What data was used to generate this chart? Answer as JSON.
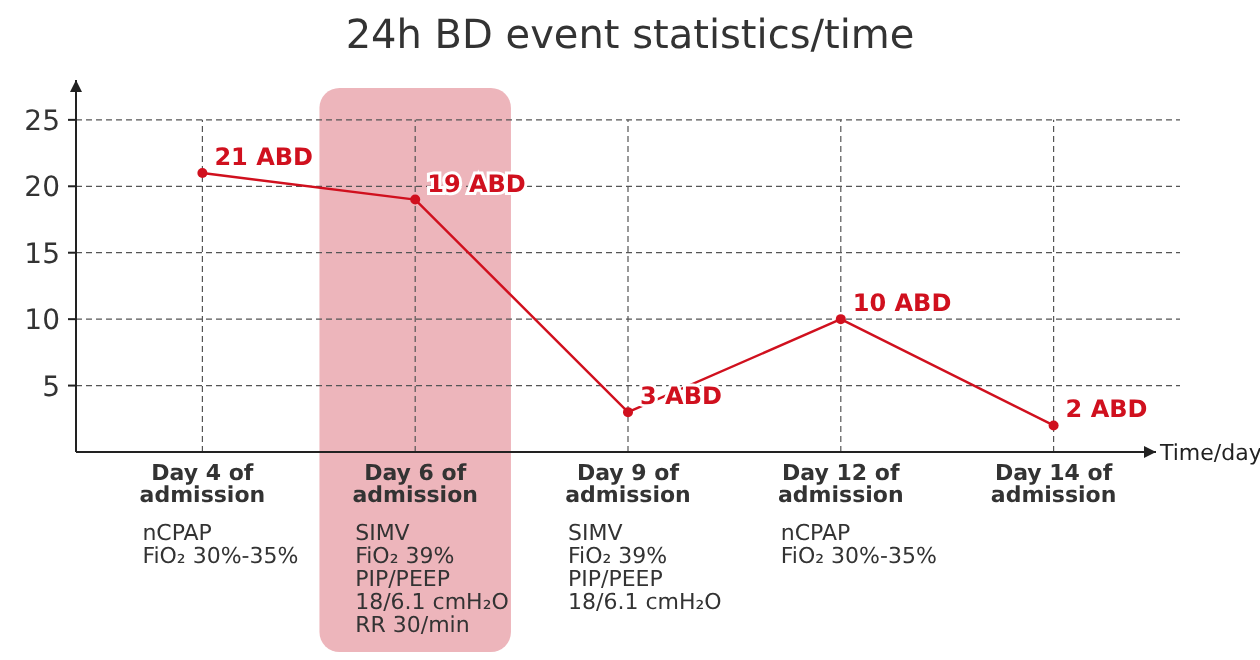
{
  "chart_data": {
    "type": "line",
    "title": "24h BD event statistics/time",
    "xlabel": "Time/day",
    "categories": [
      "Day 4 of admission",
      "Day 6 of admission",
      "Day 9 of admission",
      "Day 12 of admission",
      "Day 14 of admission"
    ],
    "series": [
      {
        "color": "#d0101e",
        "values": [
          21,
          19,
          3,
          10,
          2
        ],
        "value_labels": [
          "21 ABD",
          "19 ABD",
          "3 ABD",
          "10 ABD",
          "2 ABD"
        ]
      }
    ],
    "ylim": [
      0,
      28
    ],
    "yticks": [
      5,
      10,
      15,
      20,
      25
    ],
    "grid": true,
    "marker": "circle",
    "line_style": "solid",
    "bands": [
      {
        "axis": "x",
        "from": "Day 6 of admission",
        "to": "Day 6 of admission",
        "color": "#e9a3aa"
      }
    ],
    "annotations": [
      "nCPAP\nFiO₂ 30%-35%",
      "SIMV\nFiO₂ 39%\nPIP/PEEP\n18/6.1 cmH₂O\nRR 30/min",
      "SIMV\nFiO₂ 39%\nPIP/PEEP\n18/6.1 cmH₂O",
      "nCPAP\nFiO₂ 30%-35%"
    ]
  }
}
